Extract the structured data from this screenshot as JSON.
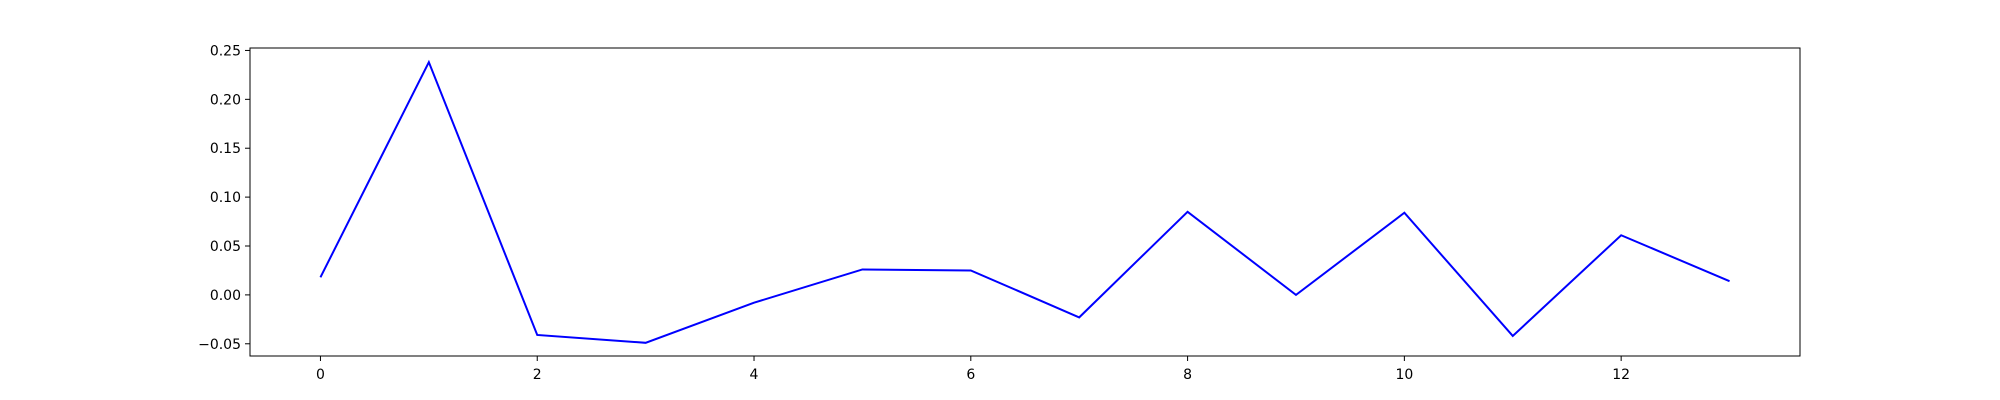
{
  "chart_data": {
    "type": "line",
    "title": "",
    "xlabel": "",
    "ylabel": "",
    "x": [
      0,
      1,
      2,
      3,
      4,
      5,
      6,
      7,
      8,
      9,
      10,
      11,
      12,
      13
    ],
    "series": [
      {
        "values": [
          0.018,
          0.238,
          -0.041,
          -0.049,
          -0.008,
          0.026,
          0.025,
          -0.023,
          0.085,
          0.0,
          0.084,
          -0.042,
          0.061,
          0.014
        ],
        "color": "#0000ff"
      }
    ],
    "xlim": [
      -0.65,
      13.65
    ],
    "ylim": [
      -0.0625,
      0.2525
    ],
    "xticks": [
      0,
      2,
      4,
      6,
      8,
      10,
      12
    ],
    "xtick_labels": [
      "0",
      "2",
      "4",
      "6",
      "8",
      "10",
      "12"
    ],
    "yticks": [
      -0.05,
      0.0,
      0.05,
      0.1,
      0.15,
      0.2,
      0.25
    ],
    "ytick_labels": [
      "−0.05",
      "0.00",
      "0.05",
      "0.10",
      "0.15",
      "0.20",
      "0.25"
    ],
    "grid": false,
    "legend": false
  }
}
